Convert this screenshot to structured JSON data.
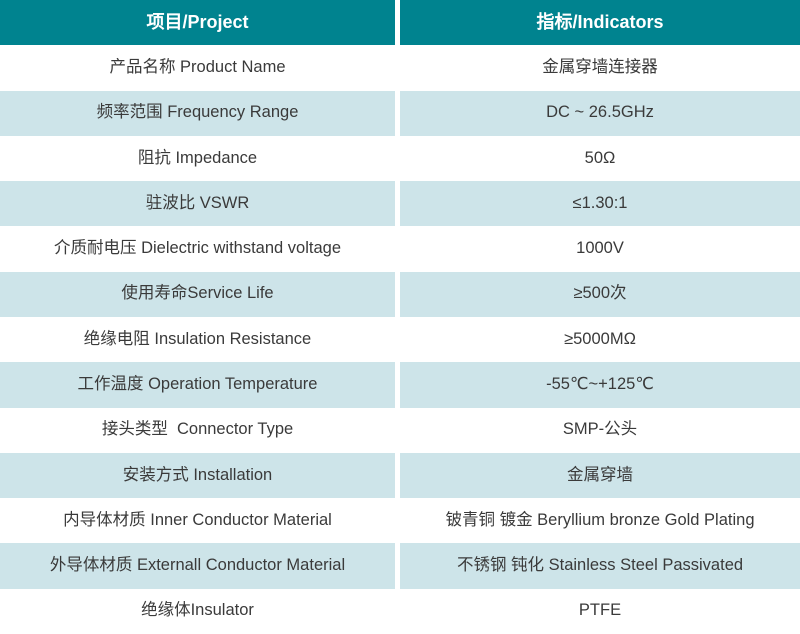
{
  "theme": {
    "header_bg": "#00838F",
    "header_text": "#ffffff",
    "row_bg": "#ffffff",
    "row_alt_bg": "#CDE4E9",
    "body_text": "#3A3A3A",
    "divider": "#ffffff"
  },
  "table": {
    "columns": [
      {
        "label": "项目/Project"
      },
      {
        "label": "指标/Indicators"
      }
    ],
    "rows": [
      {
        "project": "产品名称 Product Name",
        "indicator": "金属穿墙连接器"
      },
      {
        "project": "频率范围 Frequency Range",
        "indicator": "DC ~ 26.5GHz"
      },
      {
        "project": "阻抗 Impedance",
        "indicator": "50Ω"
      },
      {
        "project": "驻波比 VSWR",
        "indicator": "≤1.30:1"
      },
      {
        "project": "介质耐电压 Dielectric withstand voltage",
        "indicator": "1000V"
      },
      {
        "project": "使用寿命Service Life",
        "indicator": "≥500次"
      },
      {
        "project": "绝缘电阻 Insulation Resistance",
        "indicator": "≥5000MΩ"
      },
      {
        "project": "工作温度 Operation Temperature",
        "indicator": "-55℃~+125℃"
      },
      {
        "project": "接头类型  Connector Type",
        "indicator": "SMP-公头"
      },
      {
        "project": "安装方式 Installation",
        "indicator": "金属穿墙"
      },
      {
        "project": "内导体材质 Inner Conductor Material",
        "indicator": "铍青铜 镀金 Beryllium bronze Gold Plating"
      },
      {
        "project": "外导体材质 Externall Conductor Material",
        "indicator": "不锈钢 钝化 Stainless Steel Passivated"
      },
      {
        "project": "绝缘体Insulator",
        "indicator": "PTFE"
      }
    ]
  }
}
